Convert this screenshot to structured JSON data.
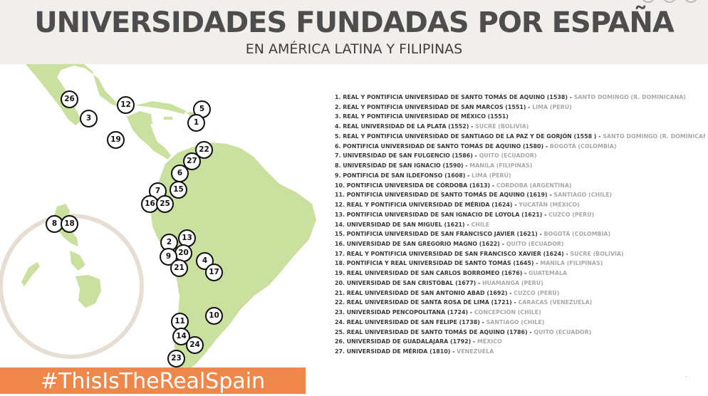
{
  "header": {
    "title": "UNIVERSIDADES FUNDADAS POR ESPAÑA",
    "subtitle": "EN AMÉRICA LATINA Y FILIPINAS"
  },
  "colors": {
    "land": "#c9e09f",
    "header_bg": "#f1efeb",
    "accent": "#f0874a",
    "inset_circle": "#e6ddd3",
    "place_text": "#a9a9a9"
  },
  "markers": [
    "26",
    "12",
    "5",
    "3",
    "1",
    "19",
    "22",
    "27",
    "6",
    "7",
    "15",
    "16",
    "25",
    "8",
    "18",
    "13",
    "2",
    "20",
    "9",
    "4",
    "21",
    "17",
    "10",
    "11",
    "14",
    "24",
    "23"
  ],
  "universities": [
    {
      "name": "1. REAL Y PONTIFICIA UNIVERSIDAD DE SANTO TOMÁS DE AQUINO (1538)",
      "sep": " - ",
      "place": "SANTO DOMINGO (R. DOMINICANA)"
    },
    {
      "name": "2. REAL Y PONTIFICIA UNIVERSIDAD DE SAN MARCOS (1551)",
      "sep": " - ",
      "place": "LIMA (PERÚ)"
    },
    {
      "name": "3. REAL Y PONTIFICIA UNIVERSIDAD DE MÉXICO (1551)",
      "sep": "",
      "place": ""
    },
    {
      "name": "4. REAL UNIVERSIDAD DE LA PLATA (1552)",
      "sep": " - ",
      "place": "SUCRE (BOLIVIA)"
    },
    {
      "name": "5. REAL Y PONTIFICIA UNIVERSIDAD DE SANTIAGO DE LA PAZ Y DE GORJÓN (1558 )",
      "sep": " - ",
      "place": "SANTO DOMINGO (R. DOMINICANA)"
    },
    {
      "name": "6. PONTIFICIA UNIVERSIDAD DE SANTO TOMÁS DE AQUINO (1580)",
      "sep": " - ",
      "place": "BOGOTÁ (COLOMBIA)"
    },
    {
      "name": "7. UNIVERSIDAD DE SAN FULGENCIO (1586)",
      "sep": " - ",
      "place": "QUITO (ECUADOR)"
    },
    {
      "name": "8. UNIVERSIDAD DE SAN IGNACIO (1590)",
      "sep": " - ",
      "place": "MANILA (FILIPINAS)"
    },
    {
      "name": "9. PONTIFICIA DE SAN ILDEFONSO (1608)",
      "sep": " - ",
      "place": "LIMA (PERÚ)"
    },
    {
      "name": "10. PONTIFICIA UNIVERSIDA DE CÓRDOBA  (1613)",
      "sep": " - ",
      "place": "CÓRDOBA (ARGENTINA)"
    },
    {
      "name": "11. PONTIFICIA UNIVERSIDAD DE SANTO TOMÁS DE AQUINO (1619)",
      "sep": " - ",
      "place": "SANTIAGO (CHILE)"
    },
    {
      "name": "12. REAL Y PONTIFICIA UNIVERSIDAD DE MÉRIDA (1624)",
      "sep": " - ",
      "place": "YUCATÁN (MÉXICO)"
    },
    {
      "name": "13. PONTIFICIA UNIVERSIDAD DE SAN IGNACIO DE LOYOLA (1621)",
      "sep": " - ",
      "place": "CUZCO (PERÚ)"
    },
    {
      "name": "14. UNIVERSIDAD DE SAN MIGUEL (1621)",
      "sep": " - ",
      "place": "CHILE"
    },
    {
      "name": "15. PONTIFICIA UNIVERSIDAD DE SAN FRANCISCO JAVIER (1621)",
      "sep": " - ",
      "place": "BOGOTÁ (COLOMBIA)"
    },
    {
      "name": "16. UNIVERSIDAD DE SAN GREGORIO MAGNO (1622)",
      "sep": " - ",
      "place": "QUITO (ECUADOR)"
    },
    {
      "name": "17. REAL Y PONTIFICIA UNIVERSIDAD DE SAN FRANCISCO XAVIER (1624)",
      "sep": " - ",
      "place": "SUCRE (BOLIVIA)"
    },
    {
      "name": "18. PONTIFICIA Y REAL UNIVERSIDAD DE SANTO TOMÁS (1645)",
      "sep": " - ",
      "place": "MANILA (FILIPINAS)"
    },
    {
      "name": "19. REAL UNIVERSIDAD DE SAN CARLOS BORROMEO (1676)",
      "sep": " - ",
      "place": "GUATEMALA"
    },
    {
      "name": "20. UNIVERSIDAD DE SAN CRISTÓBAL (1677)",
      "sep": " - ",
      "place": "HUAMANGA (PERÚ)"
    },
    {
      "name": "21. REAL UNIVERSIDAD DE SAN ANTONIO ABAD (1692)",
      "sep": " - ",
      "place": "CUZCO (PERÚ)"
    },
    {
      "name": "22. REAL UNIVERSIDAD DE SANTA ROSA DE LIMA (1721)",
      "sep": " - ",
      "place": "CARACAS (VENEZUELA)"
    },
    {
      "name": "23. UNIVERSIDAD PENCOPOLITANA (1724)",
      "sep": " - ",
      "place": "CONCEPCIÓN (CHILE)"
    },
    {
      "name": "24. REAL UNIVERSIDAD DE SAN FELIPE (1738)",
      "sep": " - ",
      "place": "SANTIAGO (CHILE)"
    },
    {
      "name": "25. REAL UNIVERSIDAD DE SANTO TOMÁS DE AQUINO (1786)",
      "sep": " - ",
      "place": "QUITO (ECUADOR)"
    },
    {
      "name": "26. UNIVERSIDAD DE GUADALAJARA (1792)",
      "sep": " - ",
      "place": "MÉXICO"
    },
    {
      "name": "27. UNIVERSIDAD DE MÉRIDA (1810)",
      "sep": " - ",
      "place": "VENEZUELA"
    }
  ],
  "footer": {
    "hashtag": "#ThisIsTheRealSpain"
  }
}
